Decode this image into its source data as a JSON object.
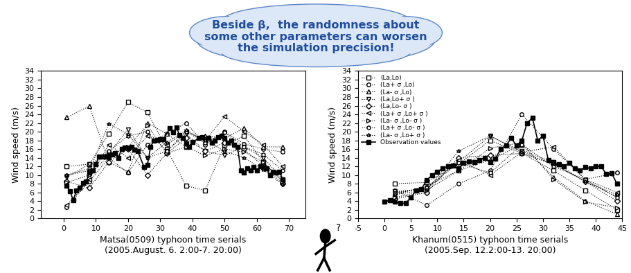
{
  "chart_data": [
    {
      "type": "line",
      "x_label": "Matsa(0509) typhoon time serials\n(2005.August. 6. 2:00-7. 20:00)",
      "y_label": "Wind speed (m/s)",
      "xlim": [
        -7,
        75
      ],
      "xticks": [
        0,
        10,
        20,
        30,
        40,
        50,
        60,
        70
      ],
      "ylim": [
        0,
        34
      ],
      "yticks": [
        0,
        2,
        4,
        6,
        8,
        10,
        12,
        14,
        16,
        18,
        20,
        22,
        24,
        26,
        28,
        30,
        32,
        34
      ],
      "series": [
        {
          "name": "(La,Lo)",
          "color": "#000000",
          "marker": "square",
          "line_style": "dotted",
          "x": [
            1,
            8,
            14,
            20,
            26,
            32,
            38,
            44,
            50,
            56,
            62,
            68
          ],
          "values": [
            12,
            12.5,
            19.5,
            26.8,
            24.5,
            16,
            7.5,
            6.5,
            17,
            19,
            13,
            8.5
          ]
        },
        {
          "name": "(La+ σ ,Lo)",
          "color": "#000000",
          "marker": "circle",
          "line_style": "dotted",
          "x": [
            1,
            8,
            14,
            20,
            26,
            32,
            38,
            44,
            50,
            56,
            62,
            68
          ],
          "values": [
            2.6,
            8.5,
            14,
            10.5,
            17,
            19.5,
            22,
            17,
            20,
            17.2,
            16,
            15.3
          ]
        },
        {
          "name": "(La- σ ,Lo)",
          "color": "#000000",
          "marker": "triangle_up",
          "line_style": "dotted",
          "x": [
            1,
            8,
            14,
            20,
            26,
            32,
            38,
            44,
            50,
            56,
            62,
            68
          ],
          "values": [
            23.3,
            25.9,
            13,
            10.8,
            22,
            19.5,
            16.5,
            19,
            18.5,
            20.8,
            16.5,
            16.5
          ]
        },
        {
          "name": "(La,Lo+ σ )",
          "color": "#000000",
          "marker": "triangle_down",
          "line_style": "dotted",
          "x": [
            1,
            8,
            14,
            20,
            26,
            32,
            38,
            44,
            50,
            56,
            62,
            68
          ],
          "values": [
            9.5,
            12.5,
            15,
            20.5,
            14,
            15.5,
            19.5,
            15.5,
            14.5,
            16.5,
            14,
            9
          ]
        },
        {
          "name": "(La,Lo- σ )",
          "color": "#000000",
          "marker": "diamond",
          "line_style": "dotted",
          "x": [
            1,
            8,
            14,
            20,
            26,
            32,
            38,
            44,
            50,
            56,
            62,
            68
          ],
          "values": [
            8.5,
            7,
            13,
            16,
            10,
            15,
            18.5,
            15.5,
            17.5,
            16,
            12,
            8
          ]
        },
        {
          "name": "(La+ σ ,Lo+ σ )",
          "color": "#000000",
          "marker": "triangle_left",
          "line_style": "dotted",
          "x": [
            1,
            8,
            14,
            20,
            26,
            32,
            38,
            44,
            50,
            56,
            62,
            68
          ],
          "values": [
            3,
            9,
            17,
            14,
            19,
            17,
            20,
            18,
            23.5,
            20,
            17,
            12
          ]
        },
        {
          "name": "(La- σ ,Lo- σ )",
          "color": "#000000",
          "marker": "triangle_right",
          "line_style": "dotted",
          "x": [
            1,
            8,
            14,
            20,
            26,
            32,
            38,
            44,
            50,
            56,
            62,
            68
          ],
          "values": [
            8.3,
            10,
            14.5,
            16.5,
            21.5,
            15,
            16.5,
            14.5,
            16,
            15.3,
            13,
            8.5
          ]
        },
        {
          "name": "(La+ σ ,Lo- σ )",
          "color": "#000000",
          "marker": "hexagon",
          "line_style": "dotted",
          "x": [
            1,
            8,
            14,
            20,
            26,
            32,
            38,
            44,
            50,
            56,
            62,
            68
          ],
          "values": [
            10,
            11.5,
            15.5,
            19,
            20,
            15.5,
            20,
            17.5,
            19.8,
            16.5,
            14.8,
            11
          ]
        },
        {
          "name": "(La- σ ,Lo+ σ )",
          "color": "#000000",
          "marker": "star",
          "line_style": "dotted",
          "x": [
            1,
            8,
            14,
            20,
            26,
            32,
            38,
            44,
            50,
            56,
            62,
            68
          ],
          "values": [
            10,
            11,
            21.8,
            19.4,
            14,
            17.5,
            20.3,
            18,
            15.5,
            14,
            11.2,
            7.8
          ]
        },
        {
          "name": "Observation values",
          "color": "#000000",
          "marker": "filled_square",
          "line_style": "solid",
          "x": [
            1,
            2,
            3,
            4,
            5,
            6,
            7,
            8,
            9,
            10,
            11,
            12,
            13,
            14,
            15,
            16,
            17,
            18,
            19,
            20,
            21,
            22,
            23,
            25,
            26,
            27,
            28,
            29,
            30,
            31,
            33,
            34,
            35,
            36,
            37,
            38,
            39,
            40,
            42,
            43,
            45,
            46,
            47,
            48,
            49,
            50,
            51,
            52,
            53,
            54,
            55,
            56,
            57,
            58,
            59,
            60,
            61,
            62,
            63,
            64,
            65,
            66,
            67,
            68
          ],
          "values": [
            7.5,
            6.2,
            4.2,
            6.5,
            7,
            8.2,
            8.5,
            10.5,
            11,
            12.5,
            14.3,
            14.2,
            14.3,
            14.2,
            14.8,
            15,
            14,
            16,
            16.3,
            16.2,
            16.5,
            15.8,
            15.5,
            11.8,
            12.3,
            16.5,
            18,
            18.1,
            18.2,
            18.3,
            20.8,
            19.8,
            21,
            19.2,
            18.5,
            17.3,
            16.5,
            17.6,
            18.5,
            18.8,
            18.5,
            17.5,
            18,
            18.7,
            19,
            18.5,
            17.5,
            18,
            17,
            16.5,
            11,
            10.5,
            11.5,
            11,
            11.8,
            11,
            12,
            11.8,
            11.5,
            10,
            10.8,
            10.5,
            10.8,
            9
          ]
        }
      ]
    },
    {
      "type": "line",
      "x_label": "Khanum(0515) typhoon time serials\n(2005.Sep. 12.2:00-13. 20:00)",
      "y_label": "Wind speed (m/s)",
      "xlim": [
        -5,
        45
      ],
      "xticks": [
        -5,
        0,
        5,
        10,
        15,
        20,
        25,
        30,
        35,
        40,
        45
      ],
      "ylim": [
        0,
        34
      ],
      "yticks": [
        0,
        2,
        4,
        6,
        8,
        10,
        12,
        14,
        16,
        18,
        20,
        22,
        24,
        26,
        28,
        30,
        32,
        34
      ],
      "legend": "upper left",
      "series": [
        {
          "name": "(La,Lo)",
          "color": "#000000",
          "marker": "square",
          "line_style": "dotted",
          "x": [
            2,
            8,
            14,
            20,
            26,
            32,
            38,
            44
          ],
          "values": [
            8,
            8.3,
            12.5,
            18,
            15,
            11,
            6.5,
            2
          ]
        },
        {
          "name": "(La+ σ ,Lo)",
          "color": "#000000",
          "marker": "circle",
          "line_style": "dotted",
          "x": [
            2,
            8,
            14,
            20,
            26,
            32,
            38,
            44
          ],
          "values": [
            6.5,
            3,
            8,
            11,
            24,
            16,
            9,
            10.5
          ]
        },
        {
          "name": "(La- σ ,Lo)",
          "color": "#000000",
          "marker": "triangle_up",
          "line_style": "dotted",
          "x": [
            2,
            8,
            14,
            20,
            26,
            32,
            38,
            44
          ],
          "values": [
            5.5,
            7.5,
            11,
            13.5,
            17,
            9.5,
            4,
            1
          ]
        },
        {
          "name": "(La,Lo+ σ )",
          "color": "#000000",
          "marker": "triangle_down",
          "line_style": "dotted",
          "x": [
            2,
            8,
            14,
            20,
            26,
            32,
            38,
            44
          ],
          "values": [
            6.2,
            6.8,
            13,
            19,
            15.5,
            13,
            8.5,
            5
          ]
        },
        {
          "name": "(La,Lo- σ )",
          "color": "#000000",
          "marker": "diamond",
          "line_style": "dotted",
          "x": [
            2,
            8,
            14,
            20,
            26,
            32,
            38,
            44
          ],
          "values": [
            4.5,
            6,
            14,
            14.5,
            15,
            12.5,
            8.5,
            4
          ]
        },
        {
          "name": "(La+ σ ,Lo+ σ )",
          "color": "#000000",
          "marker": "triangle_left",
          "line_style": "dotted",
          "x": [
            2,
            8,
            14,
            20,
            26,
            32,
            38,
            44
          ],
          "values": [
            6,
            7,
            13.5,
            10,
            15.3,
            16.5,
            9,
            6
          ]
        },
        {
          "name": "(La- σ ,Lo- σ )",
          "color": "#000000",
          "marker": "triangle_right",
          "line_style": "dotted",
          "x": [
            2,
            8,
            14,
            20,
            26,
            32,
            38,
            44
          ],
          "values": [
            4.8,
            6.5,
            11,
            16.2,
            17.5,
            9,
            3.8,
            2.5
          ]
        },
        {
          "name": "(La+ σ ,Lo- σ )",
          "color": "#000000",
          "marker": "hexagon",
          "line_style": "dotted",
          "x": [
            2,
            8,
            14,
            20,
            26,
            32,
            38,
            44
          ],
          "values": [
            5.8,
            7,
            12.8,
            10.5,
            17,
            12,
            9,
            4.8
          ]
        },
        {
          "name": "(La- σ ,Lo+ σ )",
          "color": "#000000",
          "marker": "star",
          "line_style": "dotted",
          "x": [
            2,
            8,
            14,
            20,
            26,
            32,
            38,
            44
          ],
          "values": [
            5.5,
            6.6,
            15.5,
            19,
            15.2,
            12.5,
            8.5,
            5.5
          ]
        },
        {
          "name": "Observation values",
          "color": "#000000",
          "marker": "filled_square",
          "line_style": "solid",
          "x": [
            0,
            1,
            2,
            3,
            4,
            5,
            6,
            7,
            8,
            9,
            10,
            11,
            12,
            13,
            14,
            15,
            16,
            17,
            18,
            19,
            20,
            21,
            22,
            23,
            24,
            25,
            26,
            27,
            28,
            29,
            30,
            31,
            32,
            33,
            34,
            35,
            36,
            37,
            38,
            39,
            40,
            41,
            42,
            43,
            44
          ],
          "values": [
            3.8,
            4.2,
            3.8,
            3.5,
            3.5,
            4.8,
            6.5,
            6.8,
            8.8,
            10,
            10.8,
            11.5,
            12,
            12.2,
            11.3,
            12.8,
            13.2,
            13,
            13.5,
            14,
            13,
            13.8,
            16,
            16.8,
            18.5,
            16.8,
            18,
            22,
            23.2,
            18,
            19,
            13.5,
            13,
            12.5,
            12,
            12.8,
            11.5,
            11,
            11.8,
            11.5,
            12,
            12,
            10.2,
            10.4,
            8
          ]
        }
      ]
    }
  ],
  "annotations": {
    "callout": "Beside β,  the randomness about\nsome other parameters can worsen\nthe simulation precision!",
    "figure_mark": "?"
  }
}
